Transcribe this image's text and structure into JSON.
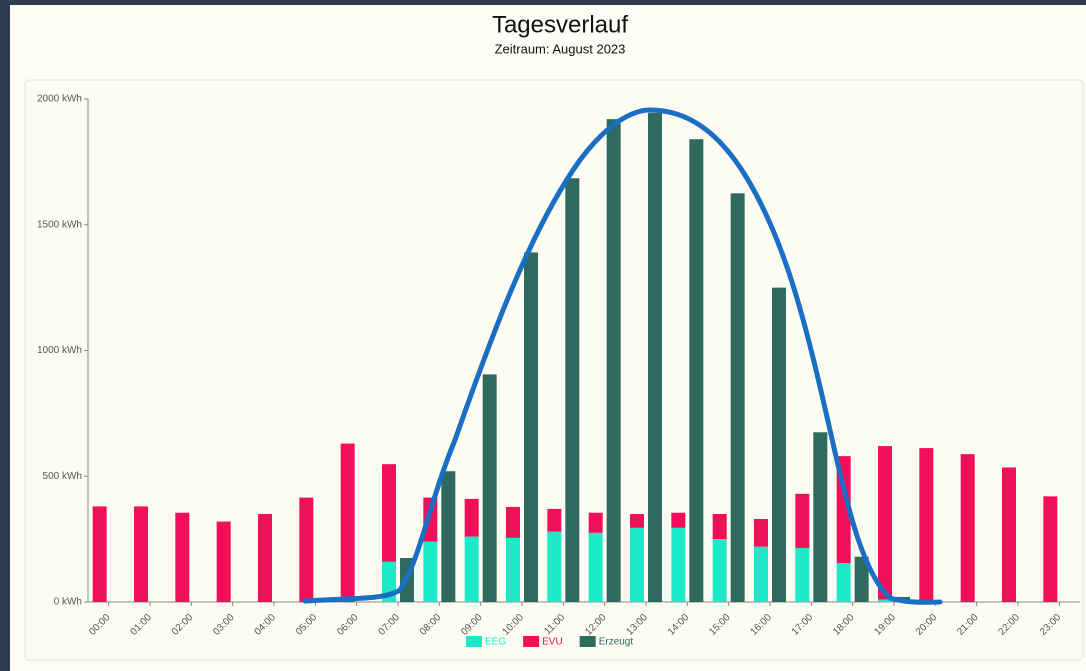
{
  "chart_data": {
    "type": "bar",
    "title": "Tagesverlauf",
    "subtitle": "Zeitraum: August 2023",
    "categories": [
      "00:00",
      "01:00",
      "02:00",
      "03:00",
      "04:00",
      "05:00",
      "06:00",
      "07:00",
      "08:00",
      "09:00",
      "10:00",
      "11:00",
      "12:00",
      "13:00",
      "14:00",
      "15:00",
      "16:00",
      "17:00",
      "18:00",
      "19:00",
      "20:00",
      "21:00",
      "22:00",
      "23:00"
    ],
    "series": [
      {
        "name": "EEG",
        "color": "#1de9c9",
        "stack": "bezug",
        "values": [
          0,
          0,
          0,
          0,
          0,
          0,
          0,
          160,
          240,
          260,
          255,
          280,
          275,
          295,
          295,
          250,
          220,
          215,
          155,
          10,
          0,
          0,
          0,
          0
        ]
      },
      {
        "name": "EVU",
        "color": "#f0105a",
        "stack": "bezug",
        "values": [
          380,
          380,
          355,
          320,
          350,
          415,
          630,
          388,
          175,
          150,
          123,
          90,
          80,
          55,
          60,
          100,
          110,
          215,
          425,
          610,
          612,
          588,
          535,
          420
        ]
      },
      {
        "name": "Erzeugt",
        "color": "#2e6b5e",
        "stack": "erzeugt",
        "values": [
          0,
          0,
          0,
          0,
          0,
          0,
          0,
          175,
          520,
          905,
          1390,
          1685,
          1920,
          1945,
          1840,
          1625,
          1250,
          675,
          180,
          20,
          0,
          0,
          0,
          0
        ]
      }
    ],
    "ylim": [
      0,
      2000
    ],
    "yticks": [
      {
        "value": 0,
        "label": "0 kWh"
      },
      {
        "value": 500,
        "label": "500 kWh"
      },
      {
        "value": 1000,
        "label": "1000 kWh"
      },
      {
        "value": 1500,
        "label": "1500 kWh"
      },
      {
        "value": 2000,
        "label": "2000 kWh"
      }
    ]
  }
}
